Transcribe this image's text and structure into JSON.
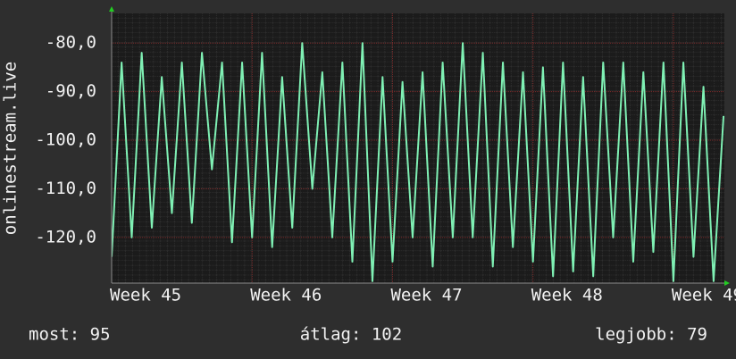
{
  "chart_data": {
    "type": "line",
    "y_label": "onlinestream.live",
    "ylim": [
      -129.4,
      -73.9
    ],
    "yticks": [
      {
        "value": -80,
        "label": "-80,0"
      },
      {
        "value": -90,
        "label": "-90,0"
      },
      {
        "value": -100,
        "label": "-100,0"
      },
      {
        "value": -110,
        "label": "-110,0"
      },
      {
        "value": -120,
        "label": "-120,0"
      }
    ],
    "xlim": [
      45,
      49.363
    ],
    "xticks": [
      {
        "value": 45,
        "label": "Week 45"
      },
      {
        "value": 46,
        "label": "Week 46"
      },
      {
        "value": 47,
        "label": "Week 47"
      },
      {
        "value": 48,
        "label": "Week 48"
      },
      {
        "value": 49,
        "label": "Week 49"
      }
    ],
    "grid": true,
    "x": [
      45.0,
      45.071,
      45.143,
      45.214,
      45.286,
      45.357,
      45.429,
      45.5,
      45.571,
      45.643,
      45.714,
      45.786,
      45.857,
      45.929,
      46.0,
      46.071,
      46.143,
      46.214,
      46.286,
      46.357,
      46.429,
      46.5,
      46.571,
      46.643,
      46.714,
      46.786,
      46.857,
      46.929,
      47.0,
      47.071,
      47.143,
      47.214,
      47.286,
      47.357,
      47.429,
      47.5,
      47.571,
      47.643,
      47.714,
      47.786,
      47.857,
      47.929,
      48.0,
      48.071,
      48.143,
      48.214,
      48.286,
      48.357,
      48.429,
      48.5,
      48.571,
      48.643,
      48.714,
      48.786,
      48.857,
      48.929,
      49.0,
      49.071,
      49.143,
      49.214,
      49.286,
      49.357
    ],
    "series": [
      {
        "color": "#7ff0b4",
        "values": [
          -124,
          -84,
          -120,
          -82,
          -118,
          -87,
          -115,
          -84,
          -117,
          -82,
          -106,
          -84,
          -121,
          -84,
          -120,
          -82,
          -122,
          -87,
          -118,
          -80,
          -110,
          -86,
          -120,
          -84,
          -125,
          -80,
          -129,
          -87,
          -125,
          -88,
          -120,
          -86,
          -126,
          -84,
          -120,
          -80,
          -120,
          -82,
          -126,
          -84,
          -122,
          -86,
          -125,
          -85,
          -128,
          -84,
          -127,
          -87,
          -128,
          -84,
          -120,
          -84,
          -125,
          -86,
          -123,
          -84,
          -129,
          -84,
          -124,
          -89,
          -129,
          -95
        ]
      }
    ],
    "stats": [
      "most: 95",
      "átlag: 102",
      "legjobb: 79"
    ]
  }
}
